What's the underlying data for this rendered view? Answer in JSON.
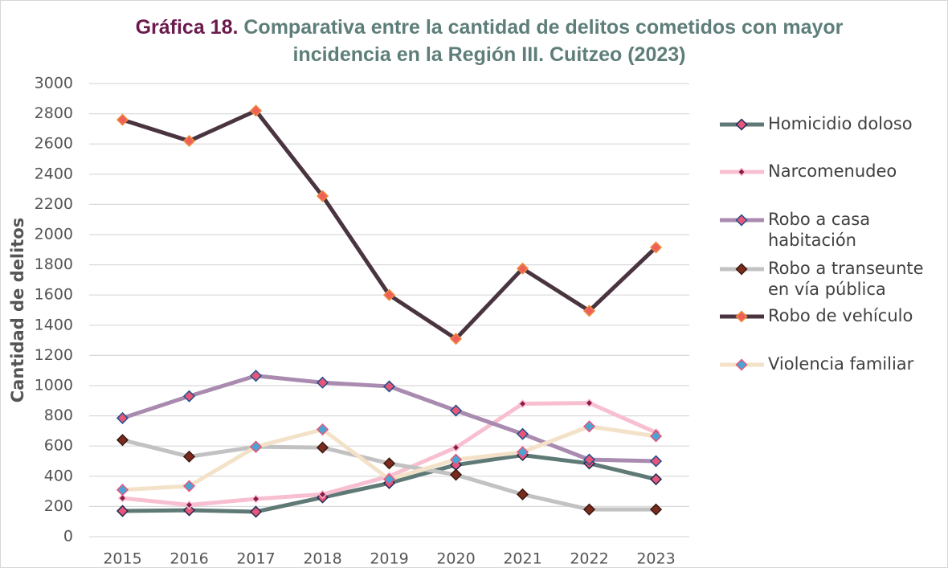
{
  "chart_data": {
    "type": "line",
    "title_label": "Gráfica 18.",
    "title": "Comparativa entre la cantidad de delitos cometidos con mayor incidencia en la Región III. Cuitzeo (2023)",
    "y_label": "Cantidad de delitos",
    "categories": [
      "2015",
      "2016",
      "2017",
      "2018",
      "2019",
      "2020",
      "2021",
      "2022",
      "2023"
    ],
    "ylim": [
      0,
      3000
    ],
    "yticks": [
      0,
      200,
      400,
      600,
      800,
      1000,
      1200,
      1400,
      1600,
      1800,
      2000,
      2200,
      2400,
      2600,
      2800,
      3000
    ],
    "grid": true,
    "legend": "right",
    "series": [
      {
        "name": "Homicidio doloso",
        "color": "#5f7a76",
        "marker_color": "#e8567a",
        "marker_edge": "#1f2a55",
        "values": [
          170,
          175,
          165,
          260,
          355,
          475,
          540,
          485,
          380
        ]
      },
      {
        "name": "Narcomenudeo",
        "color": "#f8bfd0",
        "marker_color": "#8b1a4a",
        "marker_edge": "#f8bfd0",
        "values": [
          255,
          210,
          250,
          280,
          400,
          590,
          880,
          885,
          690
        ]
      },
      {
        "name": "Robo a casa habitación",
        "color": "#a98bb0",
        "marker_color": "#e8567a",
        "marker_edge": "#1f4f8a",
        "values": [
          785,
          930,
          1065,
          1020,
          995,
          835,
          680,
          510,
          500
        ]
      },
      {
        "name": "Robo a transeunte en vía pública",
        "color": "#c2c2c2",
        "marker_color": "#7b2b1e",
        "marker_edge": "#3a1a10",
        "values": [
          640,
          530,
          595,
          590,
          485,
          410,
          280,
          180,
          180
        ]
      },
      {
        "name": "Robo de vehículo",
        "color": "#4a3440",
        "marker_color": "#f0605a",
        "marker_edge": "#f08a3a",
        "values": [
          2760,
          2620,
          2820,
          2255,
          1600,
          1310,
          1775,
          1495,
          1915
        ]
      },
      {
        "name": "Violencia familiar",
        "color": "#f3e2c8",
        "marker_color": "#4aa5d6",
        "marker_edge": "#e8567a",
        "values": [
          310,
          335,
          595,
          710,
          380,
          510,
          560,
          730,
          665
        ]
      }
    ]
  }
}
